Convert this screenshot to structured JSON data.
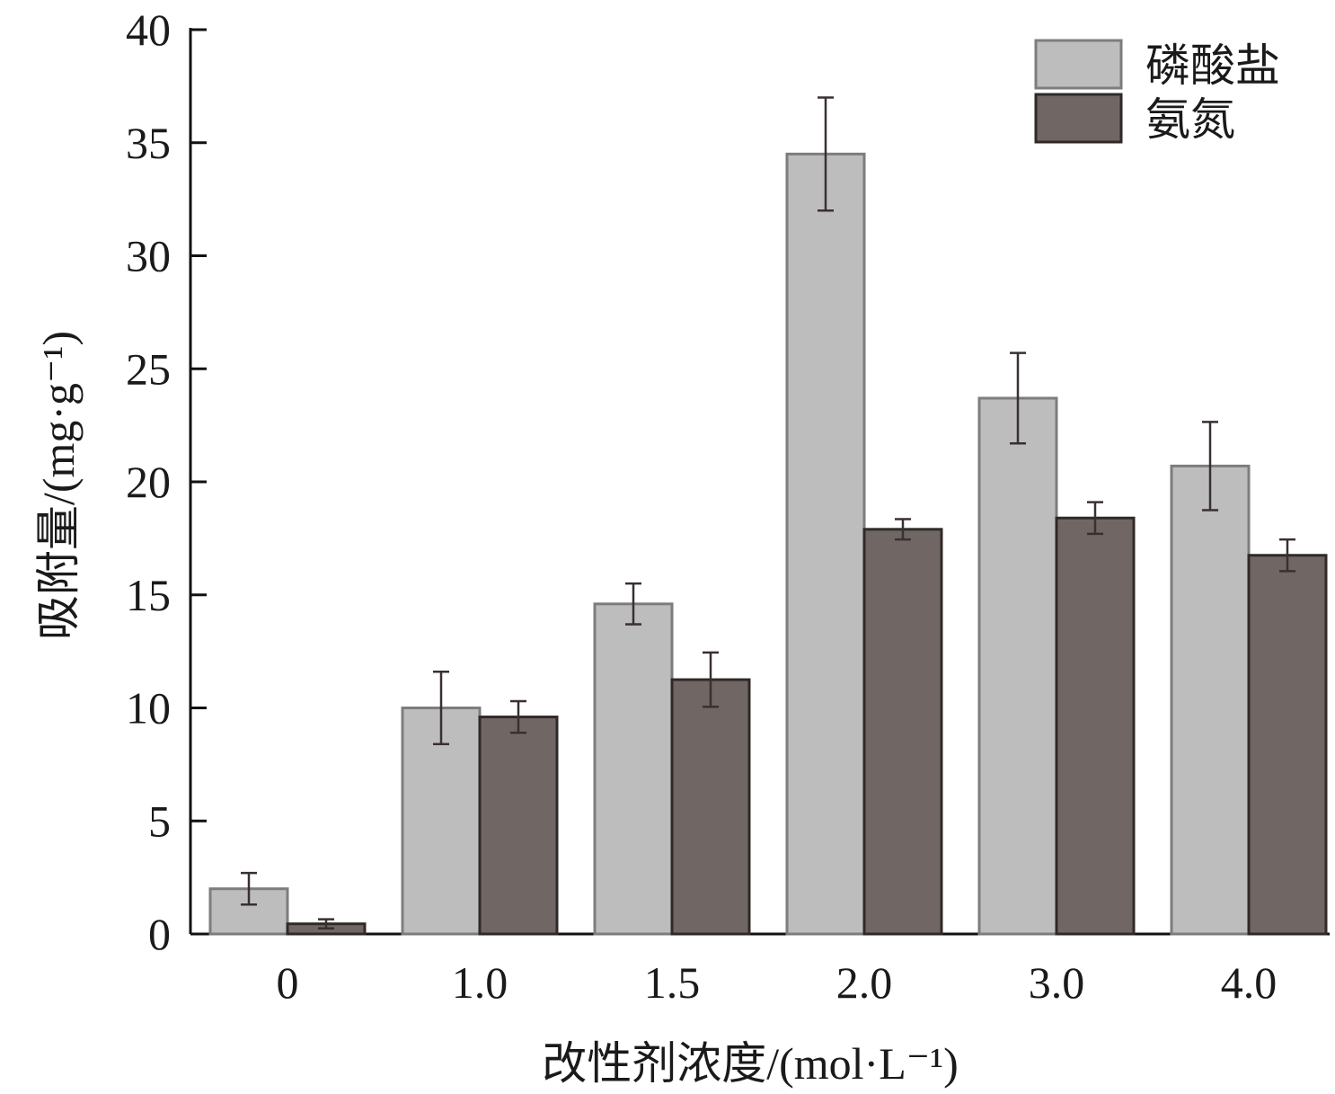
{
  "chart_data": {
    "type": "bar",
    "title": "",
    "xlabel": "改性剂浓度/(mol·L⁻¹)",
    "ylabel": "吸附量/(mg·g⁻¹)",
    "categories": [
      "0",
      "1.0",
      "1.5",
      "2.0",
      "3.0",
      "4.0"
    ],
    "ylim": [
      0,
      40
    ],
    "yticks": [
      "0",
      "5",
      "10",
      "15",
      "20",
      "25",
      "30",
      "35",
      "40"
    ],
    "legend_position": "top-right",
    "grid": false,
    "series": [
      {
        "name": "磷酸盐",
        "color": "#bdbdbd",
        "values": [
          2.0,
          10.0,
          14.6,
          34.5,
          23.7,
          20.7
        ],
        "errors": [
          0.7,
          1.6,
          0.9,
          2.5,
          2.0,
          1.95
        ]
      },
      {
        "name": "氨氮",
        "color": "#706764",
        "values": [
          0.45,
          9.6,
          11.25,
          17.9,
          18.4,
          16.75
        ],
        "errors": [
          0.2,
          0.7,
          1.2,
          0.45,
          0.7,
          0.7
        ]
      }
    ]
  }
}
